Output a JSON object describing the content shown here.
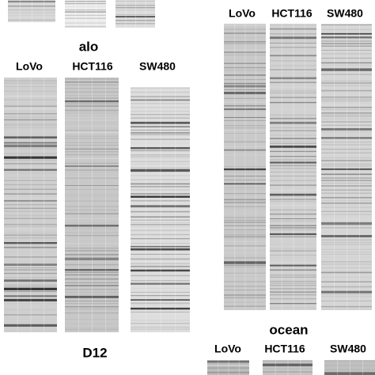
{
  "top_title": "alo",
  "left_panel": {
    "lanes": [
      "LoVo",
      "HCT116",
      "SW480"
    ],
    "caption": "D12"
  },
  "right_panel": {
    "lanes": [
      "LoVo",
      "HCT116",
      "SW480"
    ],
    "caption": "ocean"
  },
  "bottom_panel": {
    "lanes": [
      "LoVo",
      "HCT116",
      "SW480"
    ]
  }
}
